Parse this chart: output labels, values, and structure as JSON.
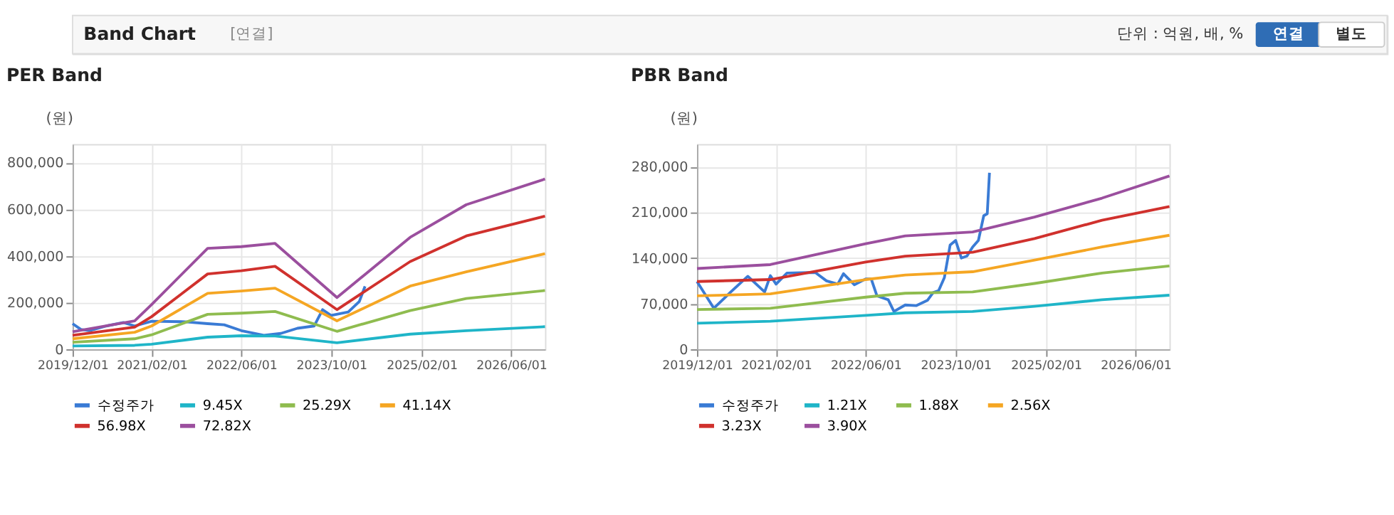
{
  "chart_data": [
    {
      "type": "line",
      "title": "PER Band",
      "ylabel": "(원)",
      "xlim": [
        "2019-12-01",
        "2026-12-01"
      ],
      "xticks": [
        {
          "value": "2019-12-01",
          "label": "2019/12/01"
        },
        {
          "value": "2021-02-01",
          "label": "2021/02/01"
        },
        {
          "value": "2022-06-01",
          "label": "2022/06/01"
        },
        {
          "value": "2023-10-01",
          "label": "2023/10/01"
        },
        {
          "value": "2025-02-01",
          "label": "2025/02/01"
        },
        {
          "value": "2026-06-01",
          "label": "2026/06/01"
        }
      ],
      "ylim": [
        0,
        880000
      ],
      "yticks": [
        {
          "value": 0,
          "label": "0"
        },
        {
          "value": 200000,
          "label": "200,000"
        },
        {
          "value": 400000,
          "label": "400,000"
        },
        {
          "value": 600000,
          "label": "600,000"
        },
        {
          "value": 800000,
          "label": "800,000"
        }
      ],
      "grid": true,
      "legend": "bottom",
      "series": [
        {
          "name": "수정주가",
          "color": "#3a7bd5",
          "x": [
            "2019-12-01",
            "2020-01-15",
            "2020-03-01",
            "2020-06-01",
            "2020-09-01",
            "2020-11-01",
            "2021-02-01",
            "2021-08-01",
            "2021-12-01",
            "2022-03-01",
            "2022-06-01",
            "2022-10-01",
            "2023-01-01",
            "2023-04-01",
            "2023-07-01",
            "2023-08-15",
            "2023-10-01",
            "2024-01-01",
            "2024-03-01",
            "2024-04-01"
          ],
          "values": [
            110000,
            85000,
            80000,
            100000,
            115000,
            100000,
            120000,
            118000,
            110000,
            105000,
            80000,
            60000,
            68000,
            90000,
            100000,
            170000,
            145000,
            160000,
            205000,
            270000
          ]
        },
        {
          "name": "9.45X",
          "color": "#1fb5c8",
          "x": [
            "2019-12-01",
            "2020-11-01",
            "2021-02-01",
            "2021-12-01",
            "2022-06-01",
            "2022-12-01",
            "2023-11-01",
            "2024-12-01",
            "2025-10-01",
            "2026-12-01"
          ],
          "values": [
            14000,
            17000,
            22000,
            52000,
            58000,
            57000,
            28000,
            65000,
            80000,
            97000
          ]
        },
        {
          "name": "25.29X",
          "color": "#8fbc4f",
          "x": [
            "2019-12-01",
            "2020-11-01",
            "2021-02-01",
            "2021-12-01",
            "2022-06-01",
            "2022-12-01",
            "2023-11-01",
            "2024-12-01",
            "2025-10-01",
            "2026-12-01"
          ],
          "values": [
            30000,
            45000,
            62000,
            150000,
            155000,
            162000,
            77000,
            166000,
            218000,
            252000
          ]
        },
        {
          "name": "41.14X",
          "color": "#f5a623",
          "x": [
            "2019-12-01",
            "2020-11-01",
            "2021-02-01",
            "2021-12-01",
            "2022-06-01",
            "2022-12-01",
            "2023-11-01",
            "2024-12-01",
            "2025-10-01",
            "2026-12-01"
          ],
          "values": [
            45000,
            73000,
            100000,
            240000,
            250000,
            262000,
            122000,
            271000,
            332000,
            410000
          ]
        },
        {
          "name": "56.98X",
          "color": "#d0312d",
          "x": [
            "2019-12-01",
            "2020-11-01",
            "2021-02-01",
            "2021-12-01",
            "2022-06-01",
            "2022-12-01",
            "2023-11-01",
            "2024-12-01",
            "2025-10-01",
            "2026-12-01"
          ],
          "values": [
            60000,
            95000,
            140000,
            323000,
            337000,
            356000,
            170000,
            376000,
            486000,
            571000
          ]
        },
        {
          "name": "72.82X",
          "color": "#9b4f9e",
          "x": [
            "2019-12-01",
            "2020-11-01",
            "2021-02-01",
            "2021-12-01",
            "2022-06-01",
            "2022-12-01",
            "2023-11-01",
            "2024-12-01",
            "2025-10-01",
            "2026-12-01"
          ],
          "values": [
            75000,
            122000,
            192000,
            433000,
            440000,
            454000,
            222000,
            480000,
            620000,
            730000
          ]
        }
      ]
    },
    {
      "type": "line",
      "title": "PBR Band",
      "ylabel": "(원)",
      "xlim": [
        "2019-12-01",
        "2026-12-01"
      ],
      "xticks": [
        {
          "value": "2019-12-01",
          "label": "2019/12/01"
        },
        {
          "value": "2021-02-01",
          "label": "2021/02/01"
        },
        {
          "value": "2022-06-01",
          "label": "2022/06/01"
        },
        {
          "value": "2023-10-01",
          "label": "2023/10/01"
        },
        {
          "value": "2025-02-01",
          "label": "2025/02/01"
        },
        {
          "value": "2026-06-01",
          "label": "2026/06/01"
        }
      ],
      "ylim": [
        0,
        315000
      ],
      "yticks": [
        {
          "value": 0,
          "label": "0"
        },
        {
          "value": 70000,
          "label": "70,000"
        },
        {
          "value": 140000,
          "label": "140,000"
        },
        {
          "value": 210000,
          "label": "210,000"
        },
        {
          "value": 280000,
          "label": "280,000"
        }
      ],
      "grid": true,
      "legend": "bottom",
      "series": [
        {
          "name": "수정주가",
          "color": "#3a7bd5",
          "x": [
            "2019-12-01",
            "2020-03-01",
            "2020-06-01",
            "2020-09-01",
            "2020-12-01",
            "2021-01-01",
            "2021-02-01",
            "2021-04-01",
            "2021-09-01",
            "2021-11-01",
            "2022-01-01",
            "2022-02-01",
            "2022-04-01",
            "2022-06-01",
            "2022-07-01",
            "2022-08-01",
            "2022-10-01",
            "2022-11-01",
            "2023-01-01",
            "2023-03-01",
            "2023-05-01",
            "2023-06-01",
            "2023-07-01",
            "2023-08-01",
            "2023-09-01",
            "2023-10-01",
            "2023-11-01",
            "2023-12-01",
            "2024-01-01",
            "2024-02-01",
            "2024-03-01",
            "2024-03-20",
            "2024-04-01"
          ],
          "values": [
            104000,
            63000,
            88000,
            112000,
            88000,
            113000,
            100000,
            117000,
            118000,
            105000,
            100000,
            116000,
            99000,
            108000,
            108000,
            82000,
            76000,
            58000,
            68000,
            67000,
            75000,
            87000,
            90000,
            110000,
            160000,
            167000,
            140000,
            143000,
            157000,
            167000,
            205000,
            208000,
            271000
          ]
        },
        {
          "name": "1.21X",
          "color": "#1fb5c8",
          "x": [
            "2019-12-01",
            "2021-01-01",
            "2022-06-01",
            "2023-01-01",
            "2024-01-01",
            "2024-12-01",
            "2025-12-01",
            "2026-12-01"
          ],
          "values": [
            40000,
            43000,
            52000,
            56000,
            58000,
            66000,
            76000,
            83000
          ]
        },
        {
          "name": "1.88X",
          "color": "#8fbc4f",
          "x": [
            "2019-12-01",
            "2021-01-01",
            "2022-06-01",
            "2023-01-01",
            "2024-01-01",
            "2024-12-01",
            "2025-12-01",
            "2026-12-01"
          ],
          "values": [
            61000,
            63000,
            80000,
            86000,
            88000,
            101000,
            117000,
            128000
          ]
        },
        {
          "name": "2.56X",
          "color": "#f5a623",
          "x": [
            "2019-12-01",
            "2021-01-01",
            "2022-06-01",
            "2023-01-01",
            "2024-01-01",
            "2024-12-01",
            "2025-12-01",
            "2026-12-01"
          ],
          "values": [
            82000,
            85000,
            107000,
            114000,
            119000,
            137000,
            157000,
            175000
          ]
        },
        {
          "name": "3.23X",
          "color": "#d0312d",
          "x": [
            "2019-12-01",
            "2021-01-01",
            "2022-06-01",
            "2023-01-01",
            "2024-01-01",
            "2024-12-01",
            "2025-12-01",
            "2026-12-01"
          ],
          "values": [
            104000,
            107000,
            134000,
            143000,
            149000,
            170000,
            198000,
            219000
          ]
        },
        {
          "name": "3.90X",
          "color": "#9b4f9e",
          "x": [
            "2019-12-01",
            "2021-01-01",
            "2022-06-01",
            "2023-01-01",
            "2024-01-01",
            "2024-12-01",
            "2025-12-01",
            "2026-12-01"
          ],
          "values": [
            124000,
            130000,
            162000,
            174000,
            180000,
            203000,
            232000,
            266000
          ]
        }
      ]
    },
    {
      "type": "other",
      "title": "Band Chart",
      "annotations": [
        "[연결]",
        "단위 : 억원, 배, %",
        "연결",
        "별도"
      ]
    }
  ]
}
